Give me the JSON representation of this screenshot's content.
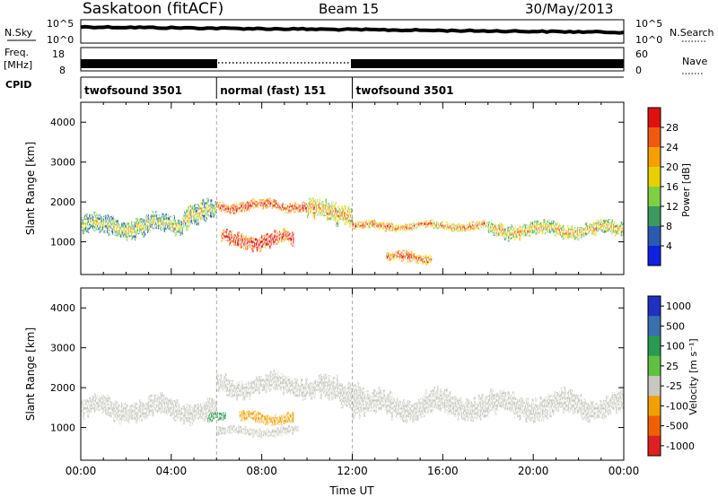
{
  "header": {
    "title": "Saskatoon (fitACF)",
    "beam": "Beam 15",
    "date": "30/May/2013"
  },
  "strips": {
    "nsky": {
      "left_label": "N.Sky",
      "right_label": "N.Search",
      "ticks_left": [
        "10^5",
        "10^0"
      ],
      "ticks_right": [
        "10^5",
        "10^0"
      ]
    },
    "freq": {
      "left_label_1": "Freq.",
      "left_label_2": "[MHz]",
      "right_label": "Nave",
      "ticks_left": [
        "18",
        "8"
      ],
      "ticks_right": [
        "60",
        "0"
      ]
    },
    "cpid": {
      "label": "CPID",
      "segments": [
        {
          "start": 0,
          "end": 6,
          "name": "twofsound 3501"
        },
        {
          "start": 6,
          "end": 12,
          "name": "normal (fast) 151"
        },
        {
          "start": 12,
          "end": 24,
          "name": "twofsound 3501"
        }
      ]
    }
  },
  "chart_data": [
    {
      "type": "heatmap",
      "panel": "power",
      "ylabel": "Slant Range [km]",
      "xlim": [
        0,
        24
      ],
      "ylim": [
        180,
        4500
      ],
      "yticks": [
        1000,
        2000,
        3000,
        4000
      ],
      "colorbar": {
        "label": "Power [dB]",
        "ticks": [
          "28",
          "24",
          "20",
          "16",
          "12",
          "8",
          "4"
        ],
        "colors": [
          "#e01010",
          "#f05a10",
          "#f5a000",
          "#e8d000",
          "#7fd040",
          "#3a9a60",
          "#2a5ab0",
          "#1020e0"
        ]
      },
      "bands": [
        {
          "t0": 0.0,
          "t1": 4.5,
          "center": 1400,
          "width": 450,
          "level": 8
        },
        {
          "t0": 4.5,
          "t1": 6.0,
          "center": 1700,
          "width": 500,
          "level": 10
        },
        {
          "t0": 6.0,
          "t1": 10.0,
          "center": 1900,
          "width": 250,
          "level": 22
        },
        {
          "t0": 10.0,
          "t1": 12.0,
          "center": 1750,
          "width": 450,
          "level": 14
        },
        {
          "t0": 12.0,
          "t1": 18.0,
          "center": 1400,
          "width": 200,
          "level": 18
        },
        {
          "t0": 18.0,
          "t1": 24.0,
          "center": 1300,
          "width": 350,
          "level": 12
        },
        {
          "t0": 6.2,
          "t1": 9.4,
          "center": 1050,
          "width": 350,
          "level": 24
        },
        {
          "t0": 13.5,
          "t1": 15.5,
          "center": 600,
          "width": 250,
          "level": 20
        }
      ]
    },
    {
      "type": "heatmap",
      "panel": "velocity",
      "ylabel": "Slant Range [km]",
      "xlabel": "Time UT",
      "xlim": [
        0,
        24
      ],
      "ylim": [
        180,
        4500
      ],
      "xticks": [
        "00:00",
        "04:00",
        "08:00",
        "12:00",
        "16:00",
        "20:00",
        "00:00"
      ],
      "yticks": [
        1000,
        2000,
        3000,
        4000
      ],
      "colorbar": {
        "label": "Velocity [m s⁻¹]",
        "ticks": [
          "1000",
          "500",
          "100",
          "25",
          "-25",
          "-100",
          "-500",
          "-1000"
        ],
        "colors": [
          "#2030c0",
          "#3a70b0",
          "#2a9a50",
          "#60c040",
          "#c8c8c0",
          "#f0a000",
          "#f06000",
          "#e02020"
        ]
      },
      "bands": [
        {
          "t0": 0.0,
          "t1": 6.0,
          "center": 1450,
          "width": 500,
          "level": 0
        },
        {
          "t0": 6.0,
          "t1": 10.5,
          "center": 2050,
          "width": 450,
          "level": 0
        },
        {
          "t0": 10.5,
          "t1": 12.5,
          "center": 1900,
          "width": 600,
          "level": 0
        },
        {
          "t0": 12.0,
          "t1": 24.0,
          "center": 1550,
          "width": 550,
          "level": 0
        },
        {
          "t0": 7.0,
          "t1": 9.4,
          "center": 1250,
          "width": 250,
          "level": -100
        },
        {
          "t0": 6.0,
          "t1": 9.6,
          "center": 900,
          "width": 200,
          "level": 0
        },
        {
          "t0": 5.6,
          "t1": 6.4,
          "center": 1250,
          "width": 200,
          "level": 100
        }
      ]
    }
  ]
}
